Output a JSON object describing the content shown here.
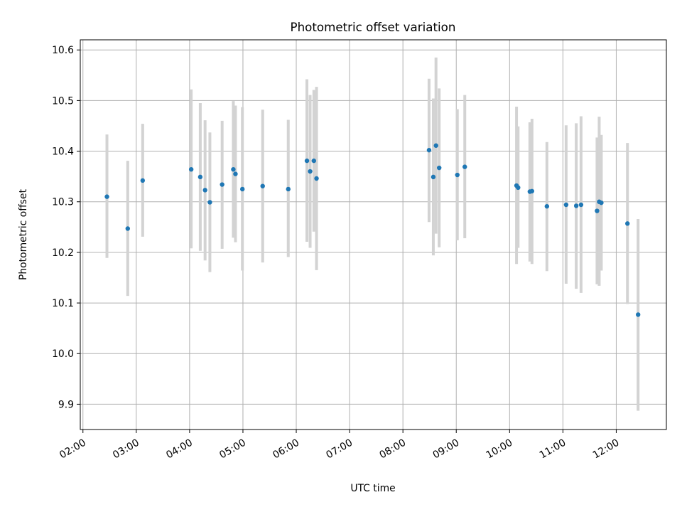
{
  "chart_data": {
    "type": "scatter",
    "title": "Photometric offset variation",
    "xlabel": "UTC time",
    "ylabel": "Photometric offset",
    "x_unit": "hour (UTC)",
    "xlim": [
      1.95,
      12.94
    ],
    "ylim": [
      9.85,
      10.62
    ],
    "x_ticks": [
      {
        "value": 2,
        "label": "02:00"
      },
      {
        "value": 3,
        "label": "03:00"
      },
      {
        "value": 4,
        "label": "04:00"
      },
      {
        "value": 5,
        "label": "05:00"
      },
      {
        "value": 6,
        "label": "06:00"
      },
      {
        "value": 7,
        "label": "07:00"
      },
      {
        "value": 8,
        "label": "08:00"
      },
      {
        "value": 9,
        "label": "09:00"
      },
      {
        "value": 10,
        "label": "10:00"
      },
      {
        "value": 11,
        "label": "11:00"
      },
      {
        "value": 12,
        "label": "12:00"
      }
    ],
    "y_ticks": [
      {
        "value": 9.9,
        "label": "9.9"
      },
      {
        "value": 10.0,
        "label": "10.0"
      },
      {
        "value": 10.1,
        "label": "10.1"
      },
      {
        "value": 10.2,
        "label": "10.2"
      },
      {
        "value": 10.3,
        "label": "10.3"
      },
      {
        "value": 10.4,
        "label": "10.4"
      },
      {
        "value": 10.5,
        "label": "10.5"
      },
      {
        "value": 10.6,
        "label": "10.6"
      }
    ],
    "grid": true,
    "point_color": "#1f77b4",
    "errorbar_color": "#d3d3d3",
    "points": [
      {
        "x": 2.45,
        "y": 10.31,
        "lo": 10.189,
        "hi": 10.433
      },
      {
        "x": 2.84,
        "y": 10.247,
        "lo": 10.114,
        "hi": 10.381
      },
      {
        "x": 3.12,
        "y": 10.342,
        "lo": 10.231,
        "hi": 10.454
      },
      {
        "x": 4.03,
        "y": 10.364,
        "lo": 10.208,
        "hi": 10.522
      },
      {
        "x": 4.2,
        "y": 10.349,
        "lo": 10.203,
        "hi": 10.495
      },
      {
        "x": 4.29,
        "y": 10.323,
        "lo": 10.184,
        "hi": 10.461
      },
      {
        "x": 4.38,
        "y": 10.299,
        "lo": 10.161,
        "hi": 10.437
      },
      {
        "x": 4.61,
        "y": 10.334,
        "lo": 10.207,
        "hi": 10.46
      },
      {
        "x": 4.82,
        "y": 10.364,
        "lo": 10.229,
        "hi": 10.499
      },
      {
        "x": 4.86,
        "y": 10.355,
        "lo": 10.22,
        "hi": 10.49
      },
      {
        "x": 4.99,
        "y": 10.325,
        "lo": 10.164,
        "hi": 10.487
      },
      {
        "x": 5.37,
        "y": 10.331,
        "lo": 10.18,
        "hi": 10.482
      },
      {
        "x": 5.85,
        "y": 10.325,
        "lo": 10.191,
        "hi": 10.462
      },
      {
        "x": 6.2,
        "y": 10.381,
        "lo": 10.221,
        "hi": 10.542
      },
      {
        "x": 6.26,
        "y": 10.36,
        "lo": 10.209,
        "hi": 10.511
      },
      {
        "x": 6.33,
        "y": 10.381,
        "lo": 10.241,
        "hi": 10.521
      },
      {
        "x": 6.38,
        "y": 10.346,
        "lo": 10.165,
        "hi": 10.527
      },
      {
        "x": 8.49,
        "y": 10.402,
        "lo": 10.26,
        "hi": 10.543
      },
      {
        "x": 8.57,
        "y": 10.349,
        "lo": 10.194,
        "hi": 10.504
      },
      {
        "x": 8.62,
        "y": 10.411,
        "lo": 10.237,
        "hi": 10.585
      },
      {
        "x": 8.68,
        "y": 10.367,
        "lo": 10.21,
        "hi": 10.524
      },
      {
        "x": 9.02,
        "y": 10.353,
        "lo": 10.224,
        "hi": 10.483
      },
      {
        "x": 9.16,
        "y": 10.369,
        "lo": 10.228,
        "hi": 10.511
      },
      {
        "x": 10.13,
        "y": 10.332,
        "lo": 10.177,
        "hi": 10.488
      },
      {
        "x": 10.16,
        "y": 10.328,
        "lo": 10.209,
        "hi": 10.449
      },
      {
        "x": 10.38,
        "y": 10.32,
        "lo": 10.182,
        "hi": 10.457
      },
      {
        "x": 10.42,
        "y": 10.321,
        "lo": 10.177,
        "hi": 10.464
      },
      {
        "x": 10.7,
        "y": 10.291,
        "lo": 10.163,
        "hi": 10.418
      },
      {
        "x": 11.06,
        "y": 10.294,
        "lo": 10.138,
        "hi": 10.451
      },
      {
        "x": 11.25,
        "y": 10.292,
        "lo": 10.128,
        "hi": 10.455
      },
      {
        "x": 11.34,
        "y": 10.294,
        "lo": 10.12,
        "hi": 10.469
      },
      {
        "x": 11.64,
        "y": 10.282,
        "lo": 10.137,
        "hi": 10.427
      },
      {
        "x": 11.68,
        "y": 10.3,
        "lo": 10.134,
        "hi": 10.468
      },
      {
        "x": 11.72,
        "y": 10.298,
        "lo": 10.164,
        "hi": 10.432
      },
      {
        "x": 12.21,
        "y": 10.257,
        "lo": 10.098,
        "hi": 10.416
      },
      {
        "x": 12.41,
        "y": 10.077,
        "lo": 9.887,
        "hi": 10.266
      }
    ]
  }
}
